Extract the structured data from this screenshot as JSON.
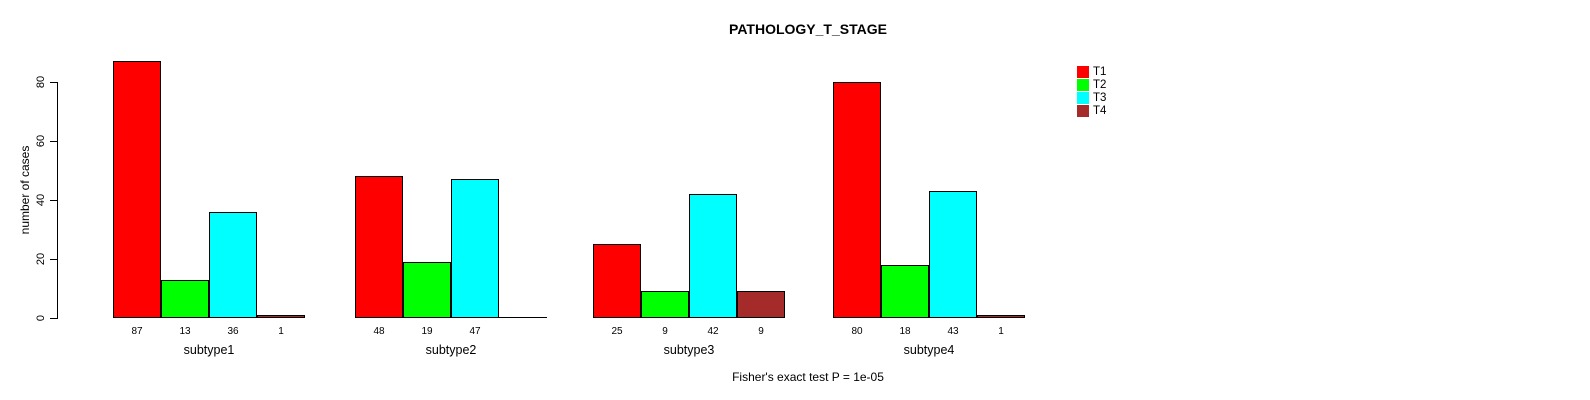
{
  "chart_data": {
    "type": "bar",
    "title": "PATHOLOGY_T_STAGE",
    "xlabel": "",
    "ylabel": "number of cases",
    "annotation": "Fisher's exact test P = 1e-05",
    "categories": [
      "subtype1",
      "subtype2",
      "subtype3",
      "subtype4"
    ],
    "series": [
      {
        "name": "T1",
        "color": "#FF0000",
        "values": [
          87,
          48,
          25,
          80
        ]
      },
      {
        "name": "T2",
        "color": "#00FF00",
        "values": [
          13,
          19,
          9,
          18
        ]
      },
      {
        "name": "T3",
        "color": "#00FFFF",
        "values": [
          36,
          47,
          42,
          43
        ]
      },
      {
        "name": "T4",
        "color": "#A52A2A",
        "values": [
          1,
          0,
          9,
          1
        ]
      }
    ],
    "bar_value_labels": [
      [
        "87",
        "13",
        "36",
        "1"
      ],
      [
        "48",
        "19",
        "47",
        ""
      ],
      [
        "25",
        "9",
        "42",
        "9"
      ],
      [
        "80",
        "18",
        "43",
        "1"
      ]
    ],
    "yticks": [
      0,
      20,
      40,
      60,
      80
    ],
    "ylim": [
      0,
      87
    ],
    "grid": false,
    "legend_position": "top-right",
    "legend_entries": [
      "T1",
      "T2",
      "T3",
      "T4"
    ]
  }
}
